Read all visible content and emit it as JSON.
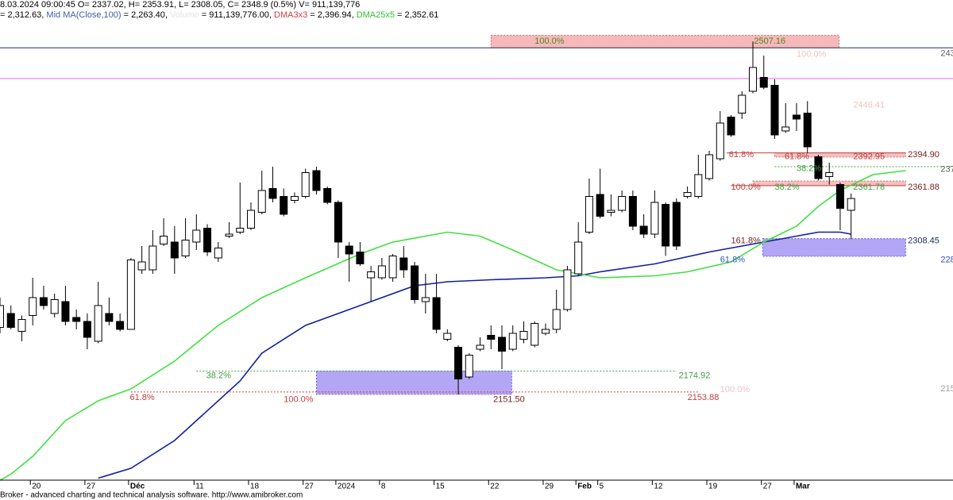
{
  "chart_data": {
    "type": "candlestick",
    "header": [
      [
        {
          "text": "8.03.2024 09:00:45 O= 2337.02, H= 2353.91, L= 2308.05, C= 2348.9 (0.5%) V= 911,139,776",
          "color": "#000000"
        }
      ],
      [
        {
          "text": "= 2,312.63, ",
          "color": "#000000"
        },
        {
          "text": "Mid MA(Close,100)",
          "color": "#4060a0"
        },
        {
          "text": " = 2,263.40, ",
          "color": "#000000"
        },
        {
          "text": "Volume",
          "color": "#e4e4e4"
        },
        {
          "text": " = 911,139,776.00, ",
          "color": "#000000"
        },
        {
          "text": "DMA3x3",
          "color": "#d04040"
        },
        {
          "text": " = 2,396.94, ",
          "color": "#000000"
        },
        {
          "text": "DMA25x5",
          "color": "#30c030"
        },
        {
          "text": " = 2,352.61",
          "color": "#000000"
        }
      ]
    ],
    "footer": "Broker - advanced charting and technical analysis software. http://www.amibroker.com",
    "xlim": [
      0,
      87.34
    ],
    "ylim": [
      2065,
      2549
    ],
    "xticks": [
      {
        "value": 3,
        "label": "20"
      },
      {
        "value": 8,
        "label": "27"
      },
      {
        "value": 12,
        "label": "Déc"
      },
      {
        "value": 18,
        "label": "11"
      },
      {
        "value": 23,
        "label": "18"
      },
      {
        "value": 28,
        "label": "27"
      },
      {
        "value": 31,
        "label": "2024"
      },
      {
        "value": 35,
        "label": "8"
      },
      {
        "value": 40,
        "label": "15"
      },
      {
        "value": 45,
        "label": "22"
      },
      {
        "value": 50,
        "label": "29"
      },
      {
        "value": 53,
        "label": "Feb"
      },
      {
        "value": 55,
        "label": "5"
      },
      {
        "value": 60,
        "label": "12"
      },
      {
        "value": 65,
        "label": "19"
      },
      {
        "value": 70,
        "label": "27"
      },
      {
        "value": 73,
        "label": "Mar"
      }
    ],
    "x": [
      0,
      1,
      2,
      3,
      4,
      5,
      6,
      7,
      8,
      9,
      10,
      11,
      12,
      13,
      14,
      15,
      16,
      17,
      18,
      19,
      20,
      21,
      22,
      23,
      24,
      25,
      26,
      27,
      28,
      29,
      30,
      31,
      32,
      33,
      34,
      35,
      36,
      37,
      38,
      39,
      40,
      41,
      42,
      43,
      44,
      45,
      46,
      47,
      48,
      49,
      50,
      51,
      52,
      53,
      54,
      55,
      56,
      57,
      58,
      59,
      60,
      61,
      62,
      63,
      64,
      65,
      66,
      67,
      68,
      69,
      70,
      71,
      72,
      73,
      74,
      75,
      76,
      77,
      78
    ],
    "open": [
      2219,
      2233,
      2215,
      2231,
      2249,
      2233,
      2245,
      2229,
      2225,
      2205,
      2233,
      2225,
      2217,
      2277,
      2277,
      2303,
      2305,
      2291,
      2305,
      2319,
      2289,
      2311,
      2315,
      2319,
      2335,
      2359,
      2351,
      2347,
      2351,
      2377,
      2359,
      2345,
      2301,
      2295,
      2269,
      2269,
      2269,
      2289,
      2281,
      2245,
      2249,
      2207,
      2199,
      2169,
      2197,
      2211,
      2209,
      2197,
      2207,
      2201,
      2213,
      2217,
      2237,
      2273,
      2315,
      2353,
      2335,
      2337,
      2351,
      2321,
      2313,
      2343,
      2345,
      2351,
      2351,
      2369,
      2389,
      2431,
      2435,
      2457,
      2471,
      2463,
      2417,
      2433,
      2435,
      2391,
      2371,
      2363,
      2337.02
    ],
    "high": [
      2249,
      2241,
      2231,
      2269,
      2261,
      2253,
      2261,
      2237,
      2233,
      2265,
      2249,
      2233,
      2289,
      2301,
      2317,
      2329,
      2321,
      2329,
      2333,
      2323,
      2305,
      2325,
      2365,
      2345,
      2377,
      2381,
      2359,
      2355,
      2379,
      2381,
      2361,
      2347,
      2305,
      2305,
      2281,
      2289,
      2293,
      2301,
      2285,
      2273,
      2273,
      2217,
      2201,
      2193,
      2209,
      2221,
      2221,
      2221,
      2225,
      2225,
      2223,
      2257,
      2281,
      2325,
      2369,
      2379,
      2353,
      2357,
      2357,
      2333,
      2357,
      2345,
      2349,
      2361,
      2393,
      2397,
      2437,
      2433,
      2457,
      2507.16,
      2493,
      2469,
      2445,
      2445,
      2447,
      2393,
      2385,
      2365,
      2353.91
    ],
    "low": [
      2213,
      2217,
      2205,
      2221,
      2237,
      2229,
      2221,
      2217,
      2197,
      2203,
      2221,
      2215,
      2217,
      2273,
      2273,
      2301,
      2273,
      2289,
      2297,
      2291,
      2285,
      2309,
      2313,
      2317,
      2333,
      2345,
      2331,
      2344,
      2349,
      2353,
      2343,
      2289,
      2265,
      2281,
      2245,
      2267,
      2265,
      2269,
      2243,
      2233,
      2213,
      2205,
      2151.5,
      2167,
      2195,
      2197,
      2177,
      2195,
      2203,
      2199,
      2211,
      2213,
      2235,
      2271,
      2313,
      2329,
      2331,
      2335,
      2317,
      2309,
      2309,
      2291,
      2297,
      2349,
      2349,
      2367,
      2387,
      2411,
      2429,
      2455,
      2459,
      2409,
      2415,
      2417,
      2394.9,
      2367,
      2363,
      2317,
      2308.05
    ],
    "close": [
      2241,
      2219,
      2227,
      2249,
      2241,
      2247,
      2225,
      2225,
      2209,
      2241,
      2225,
      2217,
      2287,
      2285,
      2301,
      2311,
      2289,
      2307,
      2317,
      2295,
      2299,
      2313,
      2319,
      2337,
      2357,
      2349,
      2333,
      2351,
      2375,
      2357,
      2345,
      2305,
      2293,
      2283,
      2275,
      2281,
      2291,
      2277,
      2247,
      2249,
      2217,
      2213,
      2167,
      2191,
      2201,
      2207,
      2195,
      2213,
      2215,
      2223,
      2217,
      2237,
      2277,
      2305,
      2351,
      2331,
      2337,
      2351,
      2321,
      2313,
      2345,
      2301,
      2301,
      2355,
      2373,
      2393,
      2425,
      2413,
      2453,
      2481,
      2461,
      2413,
      2421,
      2429,
      2401,
      2369,
      2375,
      2339,
      2348.9
    ],
    "up_color": "#ffffff",
    "down_color": "#000000",
    "lines": [
      {
        "color": "#1020a0",
        "x": [
          9,
          12,
          16,
          22,
          24,
          28,
          33,
          38,
          41,
          45,
          50,
          53,
          55,
          60,
          65,
          70,
          73,
          75,
          77,
          78
        ],
        "values": [
          2067,
          2077,
          2105,
          2165,
          2193,
          2221,
          2241,
          2261,
          2265,
          2267,
          2269,
          2271,
          2275,
          2283,
          2295,
          2305,
          2311,
          2315,
          2315,
          2313
        ]
      },
      {
        "color": "#40e040",
        "x": [
          0,
          1,
          3,
          6,
          9,
          12,
          16,
          20,
          24,
          28,
          33,
          36,
          41,
          44,
          47,
          51,
          55,
          60,
          63,
          67,
          70,
          73,
          75,
          77,
          80,
          83
        ],
        "values": [
          2065,
          2071,
          2089,
          2125,
          2145,
          2157,
          2185,
          2221,
          2249,
          2269,
          2293,
          2305,
          2315,
          2311,
          2297,
          2277,
          2269,
          2271,
          2275,
          2285,
          2305,
          2321,
          2341,
          2357,
          2373,
          2377
        ]
      }
    ],
    "zones": [
      {
        "x": [
          45,
          76.9
        ],
        "y": [
          2500.8,
          2513.5
        ],
        "color": "#f6b8b8",
        "edge": "#d05050"
      },
      {
        "x": [
          29,
          46.9
        ],
        "y": [
          2151.5,
          2174.92
        ],
        "color": "#b3a6f5",
        "edge": "#5040c0"
      },
      {
        "x": [
          69.9,
          83
        ],
        "y": [
          2290.6,
          2308.45
        ],
        "color": "#b3a6f5",
        "edge": "#5040c0"
      },
      {
        "x": [
          71,
          83
        ],
        "y": [
          2390.6,
          2394.9
        ],
        "color": "#f6c0c0",
        "edge": "#d05050"
      },
      {
        "x": [
          69,
          83
        ],
        "y": [
          2361.8,
          2366.6
        ],
        "color": "#f6c0c0",
        "edge": "#d05050"
      }
    ],
    "levels": [
      {
        "y": 2500.8,
        "x": [
          0,
          87.34
        ],
        "color": "#1e3060",
        "style": "solid"
      },
      {
        "y": 2469.8,
        "x": [
          0,
          87.34
        ],
        "color": "#ee66ee",
        "style": "solid"
      },
      {
        "y": 2174.92,
        "x": [
          18,
          62
        ],
        "color": "#40a040",
        "style": "dotted"
      },
      {
        "y": 2153.88,
        "x": [
          12,
          64
        ],
        "color": "#d04040",
        "style": "dotted"
      },
      {
        "y": 2381,
        "x": [
          71,
          87.34
        ],
        "color": "#40a040",
        "style": "dotted"
      },
      {
        "y": 2394.9,
        "x": [
          66.6,
          83
        ],
        "color": "#c04040",
        "style": "solid"
      },
      {
        "y": 2361.88,
        "x": [
          67,
          83
        ],
        "color": "#c04040",
        "style": "solid"
      }
    ],
    "annotations": [
      {
        "text": "100.0%",
        "x": 49,
        "y": 2507.16,
        "color": "#4a8a2a"
      },
      {
        "text": "2507.16",
        "x": 69.1,
        "y": 2507.16,
        "color": "#4a8a2a"
      },
      {
        "text": "100.0%",
        "x": 73,
        "y": 2494,
        "color": "#f2c2c2"
      },
      {
        "text": "2446.41",
        "x": 78.2,
        "y": 2443,
        "color": "#f2c2c2"
      },
      {
        "text": "61.8%",
        "x": 66.8,
        "y": 2393,
        "color": "#c04040"
      },
      {
        "text": "61.8%",
        "x": 71.9,
        "y": 2391,
        "color": "#c04040"
      },
      {
        "text": "2392.95",
        "x": 78.2,
        "y": 2391,
        "color": "#c04040"
      },
      {
        "text": "2394.90",
        "x": 83.2,
        "y": 2393,
        "color": "#7a2020"
      },
      {
        "text": "38.2%",
        "x": 73,
        "y": 2379,
        "color": "#40a040"
      },
      {
        "text": "100.0%",
        "x": 67,
        "y": 2360,
        "color": "#c04040"
      },
      {
        "text": "38.2%",
        "x": 71,
        "y": 2360,
        "color": "#40a040"
      },
      {
        "text": "2361.78",
        "x": 78.2,
        "y": 2360,
        "color": "#40a040"
      },
      {
        "text": "2361.88",
        "x": 83.2,
        "y": 2360,
        "color": "#7a2020"
      },
      {
        "text": "161.8%",
        "x": 67,
        "y": 2306,
        "color": "#7a2020"
      },
      {
        "text": "2308.45",
        "x": 83.2,
        "y": 2306,
        "color": "#1e3060"
      },
      {
        "text": "61.8%",
        "x": 66,
        "y": 2287,
        "color": "#3050c0"
      },
      {
        "text": "243",
        "x": 86.2,
        "y": 2495,
        "color": "#606060"
      },
      {
        "text": "237",
        "x": 86.2,
        "y": 2378,
        "color": "#606060"
      },
      {
        "text": "228",
        "x": 86.2,
        "y": 2287,
        "color": "#3050c0"
      },
      {
        "text": "215",
        "x": 86.2,
        "y": 2157,
        "color": "#a0a0a0"
      },
      {
        "text": "38.2%",
        "x": 18.9,
        "y": 2170,
        "color": "#40a040"
      },
      {
        "text": "2174.92",
        "x": 62.2,
        "y": 2170,
        "color": "#40a040"
      },
      {
        "text": "61.8%",
        "x": 11.9,
        "y": 2148,
        "color": "#c04040"
      },
      {
        "text": "100.0%",
        "x": 26,
        "y": 2146,
        "color": "#c04040"
      },
      {
        "text": "2151.50",
        "x": 45.2,
        "y": 2146,
        "color": "#7a2020"
      },
      {
        "text": "2153.88",
        "x": 63,
        "y": 2148,
        "color": "#c04040"
      },
      {
        "text": "100.0%",
        "x": 66,
        "y": 2156,
        "color": "#f2c2c2"
      }
    ]
  }
}
